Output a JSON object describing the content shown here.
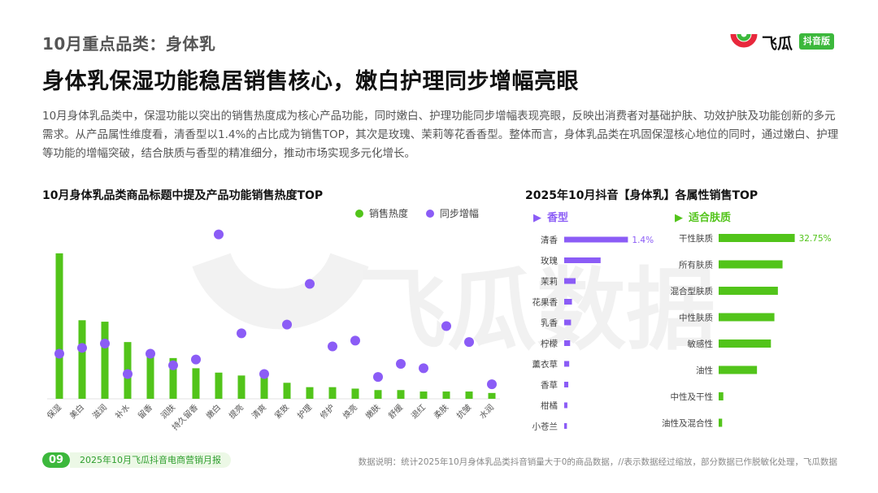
{
  "header": {
    "section_label": "10月重点品类：身体乳",
    "headline": "身体乳保湿功能稳居销售核心，嫩白护理同步增幅亮眼",
    "intro": "10月身体乳品类中，保湿功能以突出的销售热度成为核心产品功能，同时嫩白、护理功能同步增幅表现亮眼，反映出消费者对基础护肤、功效护肤及功能创新的多元需求。从产品属性维度看，清香型以1.4%的占比成为销售TOP，其次是玫瑰、茉莉等花香香型。整体而言，身体乳品类在巩固保湿核心地位的同时，通过嫩白、护理等功能的增幅突破，结合肤质与香型的精准细分，推动市场实现多元化增长。"
  },
  "logo": {
    "text": "飞瓜",
    "badge": "抖音版"
  },
  "watermark": {
    "text": "飞瓜数据"
  },
  "colors": {
    "green": "#52c41a",
    "purple": "#8b5cf6",
    "brand_green": "#3cb83c",
    "logo_red": "#e8283c"
  },
  "chart_data": [
    {
      "type": "bar",
      "title": "10月身体乳品类商品标题中提及产品功能销售热度TOP",
      "legend_position": "top-right",
      "categories": [
        "保湿",
        "美白",
        "滋润",
        "补水",
        "留香",
        "润肤",
        "持久留香",
        "嫩白",
        "提亮",
        "清爽",
        "紧致",
        "护理",
        "修护",
        "焕亮",
        "嫩肤",
        "舒缓",
        "退红",
        "柔肤",
        "抗皱",
        "水润"
      ],
      "series": [
        {
          "name": "销售热度",
          "kind": "bar",
          "color": "#52c41a",
          "values": [
            100,
            54,
            53,
            39,
            32,
            28,
            21,
            18,
            16,
            15,
            11,
            8,
            8,
            7,
            6,
            6,
            5,
            5,
            5,
            4
          ]
        },
        {
          "name": "同步增幅",
          "kind": "scatter",
          "color": "#8b5cf6",
          "values": [
            31,
            35,
            38,
            17,
            31,
            23,
            27,
            113,
            45,
            17,
            51,
            79,
            36,
            40,
            15,
            24,
            21,
            50,
            39,
            10
          ]
        }
      ],
      "ylim": [
        0,
        110
      ]
    },
    {
      "type": "bar",
      "orientation": "horizontal",
      "title": "2025年10月抖音【身体乳】各属性销售TOP",
      "panels": [
        {
          "name": "香型",
          "color": "#8b5cf6",
          "categories": [
            "清香",
            "玫瑰",
            "茉莉",
            "花果香",
            "乳香",
            "柠檬",
            "薰衣草",
            "香草",
            "柑橘",
            "小苍兰"
          ],
          "values": [
            1.4,
            0.8,
            0.25,
            0.17,
            0.15,
            0.13,
            0.11,
            0.09,
            0.07,
            0.06
          ],
          "value_labels": [
            "1.4%",
            "",
            "",
            "",
            "",
            "",
            "",
            "",
            "",
            ""
          ],
          "xlim": [
            0,
            1.5
          ]
        },
        {
          "name": "适合肤质",
          "color": "#52c41a",
          "categories": [
            "干性肤质",
            "所有肤质",
            "混合型肤质",
            "中性肤质",
            "敏感性",
            "油性",
            "中性及干性",
            "油性及混合性"
          ],
          "values": [
            32.75,
            27.5,
            25.5,
            24.0,
            22.5,
            16.5,
            2.0,
            1.5
          ],
          "value_labels": [
            "32.75%",
            "",
            "",
            "",
            "",
            "",
            "",
            ""
          ],
          "xlim": [
            0,
            35
          ]
        }
      ]
    }
  ],
  "footer": {
    "page": "09",
    "report": "2025年10月飞瓜抖音电商营销月报",
    "note": "数据说明：统计2025年10月身体乳品类抖音销量大于0的商品数据，//表示数据经过缩放，部分数据已作脱敏化处理，飞瓜数据"
  }
}
